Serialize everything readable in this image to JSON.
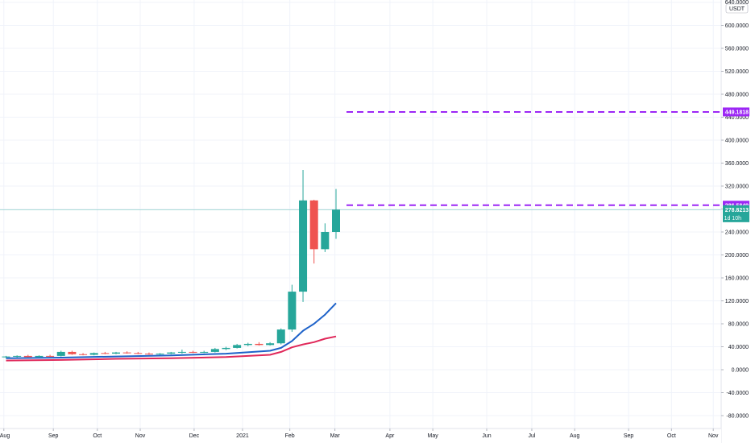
{
  "chart_data": {
    "type": "candlestick",
    "quote_unit": "USDT",
    "y_ticks": [
      640,
      600,
      560,
      520,
      480,
      440,
      400,
      360,
      320,
      280,
      240,
      200,
      160,
      120,
      80,
      40,
      0,
      -40,
      -80
    ],
    "y_tick_labels": [
      "640.0000",
      "600.0000",
      "560.0000",
      "520.0000",
      "480.0000",
      "440.0000",
      "400.0000",
      "360.0000",
      "320.0000",
      "280.0000",
      "240.0000",
      "200.0000",
      "160.0000",
      "120.0000",
      "80.0000",
      "40.0000",
      "0.0000",
      "-40.0000",
      "-80.0000"
    ],
    "ylim": [
      -100,
      645
    ],
    "x_ticks": [
      "Aug",
      "Sep",
      "Oct",
      "Nov",
      "Dec",
      "2021",
      "Feb",
      "Mar",
      "Apr",
      "May",
      "Jun",
      "Jul",
      "Aug",
      "Sep",
      "Oct",
      "Nov"
    ],
    "x_tick_weeks": [
      -0.2,
      4.3,
      8.3,
      12.2,
      17.1,
      21.5,
      25.8,
      29.9,
      34.9,
      38.8,
      43.7,
      47.8,
      51.7,
      56.6,
      60.5,
      64.3
    ],
    "candles": [
      {
        "w": 0,
        "o": 22,
        "h": 24,
        "l": 20,
        "c": 23
      },
      {
        "w": 1,
        "o": 23,
        "h": 25,
        "l": 21,
        "c": 24
      },
      {
        "w": 2,
        "o": 24,
        "h": 26,
        "l": 22,
        "c": 22
      },
      {
        "w": 3,
        "o": 22,
        "h": 25,
        "l": 21,
        "c": 24
      },
      {
        "w": 4,
        "o": 24,
        "h": 26,
        "l": 22,
        "c": 23
      },
      {
        "w": 5,
        "o": 24,
        "h": 33,
        "l": 23,
        "c": 31
      },
      {
        "w": 6,
        "o": 31,
        "h": 33,
        "l": 26,
        "c": 27
      },
      {
        "w": 7,
        "o": 27,
        "h": 29,
        "l": 25,
        "c": 26
      },
      {
        "w": 8,
        "o": 26,
        "h": 30,
        "l": 25,
        "c": 29
      },
      {
        "w": 9,
        "o": 29,
        "h": 31,
        "l": 27,
        "c": 28
      },
      {
        "w": 10,
        "o": 28,
        "h": 31,
        "l": 27,
        "c": 30
      },
      {
        "w": 11,
        "o": 30,
        "h": 32,
        "l": 28,
        "c": 29
      },
      {
        "w": 12,
        "o": 29,
        "h": 31,
        "l": 27,
        "c": 28
      },
      {
        "w": 13,
        "o": 28,
        "h": 30,
        "l": 26,
        "c": 27
      },
      {
        "w": 14,
        "o": 27,
        "h": 29,
        "l": 26,
        "c": 28
      },
      {
        "w": 15,
        "o": 28,
        "h": 31,
        "l": 27,
        "c": 30
      },
      {
        "w": 16,
        "o": 30,
        "h": 35,
        "l": 28,
        "c": 31
      },
      {
        "w": 17,
        "o": 31,
        "h": 33,
        "l": 29,
        "c": 30
      },
      {
        "w": 18,
        "o": 30,
        "h": 33,
        "l": 29,
        "c": 31
      },
      {
        "w": 19,
        "o": 31,
        "h": 38,
        "l": 30,
        "c": 36
      },
      {
        "w": 20,
        "o": 36,
        "h": 40,
        "l": 34,
        "c": 38
      },
      {
        "w": 21,
        "o": 38,
        "h": 45,
        "l": 37,
        "c": 43
      },
      {
        "w": 22,
        "o": 43,
        "h": 47,
        "l": 41,
        "c": 45
      },
      {
        "w": 23,
        "o": 45,
        "h": 48,
        "l": 42,
        "c": 43
      },
      {
        "w": 24,
        "o": 43,
        "h": 48,
        "l": 42,
        "c": 46
      },
      {
        "w": 25,
        "o": 46,
        "h": 72,
        "l": 44,
        "c": 70
      },
      {
        "w": 26,
        "o": 70,
        "h": 148,
        "l": 66,
        "c": 136
      },
      {
        "w": 27,
        "o": 136,
        "h": 348,
        "l": 118,
        "c": 295
      },
      {
        "w": 28,
        "o": 295,
        "h": 296,
        "l": 185,
        "c": 210
      },
      {
        "w": 29,
        "o": 210,
        "h": 255,
        "l": 205,
        "c": 240
      },
      {
        "w": 30,
        "o": 240,
        "h": 315,
        "l": 228,
        "c": 278.8213
      }
    ],
    "ma_lines": [
      {
        "color": "#1e62c9",
        "points": [
          [
            0,
            20
          ],
          [
            5,
            21
          ],
          [
            10,
            23
          ],
          [
            15,
            25
          ],
          [
            20,
            28
          ],
          [
            24,
            33
          ],
          [
            25,
            38
          ],
          [
            26,
            50
          ],
          [
            27,
            68
          ],
          [
            28,
            80
          ],
          [
            29,
            96
          ],
          [
            30,
            116
          ]
        ]
      },
      {
        "color": "#e0285a",
        "points": [
          [
            0,
            16
          ],
          [
            5,
            17
          ],
          [
            10,
            19
          ],
          [
            15,
            20
          ],
          [
            20,
            22
          ],
          [
            24,
            26
          ],
          [
            25,
            31
          ],
          [
            26,
            39
          ],
          [
            27,
            44
          ],
          [
            28,
            48
          ],
          [
            29,
            54
          ],
          [
            30,
            58
          ]
        ]
      }
    ],
    "levels": [
      {
        "value": 449.1818,
        "label": "449.1818",
        "color": "#9c27f5"
      },
      {
        "value": 286.5849,
        "label": "286.5849",
        "color": "#9c27f5"
      }
    ],
    "last_price": {
      "value": 278.8213,
      "label": "278.8213",
      "countdown": "1d 10h",
      "color": "#26a69a"
    },
    "colors": {
      "up": "#26a69a",
      "down": "#ef5350",
      "grid": "#f0f3fa",
      "axis": "#e0e3eb"
    }
  }
}
